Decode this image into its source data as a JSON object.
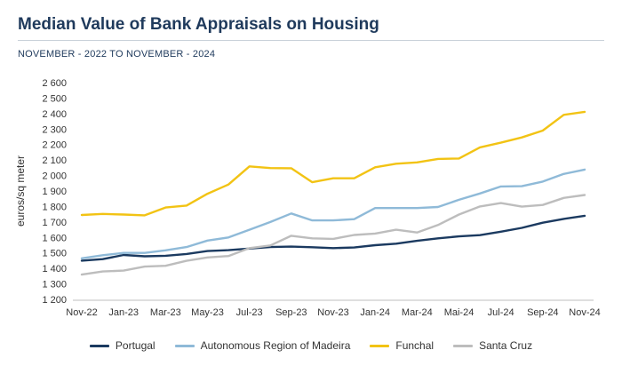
{
  "header": {
    "title": "Median Value of Bank Appraisals on Housing",
    "subtitle": "NOVEMBER - 2022 TO NOVEMBER - 2024"
  },
  "chart_data": {
    "type": "line",
    "title": "Median Value of Bank Appraisals on Housing",
    "subtitle": "NOVEMBER - 2022 TO NOVEMBER - 2024",
    "xlabel": "",
    "ylabel": "euros/sq meter",
    "ylim": [
      1200,
      2600
    ],
    "yticks": [
      1200,
      1300,
      1400,
      1500,
      1600,
      1700,
      1800,
      1900,
      2000,
      2100,
      2200,
      2300,
      2400,
      2500,
      2600
    ],
    "ytick_labels": [
      "1 200",
      "1 300",
      "1 400",
      "1 500",
      "1 600",
      "1 700",
      "1 800",
      "1 900",
      "2 000",
      "2 100",
      "2 200",
      "2 300",
      "2 400",
      "2 500",
      "2 600"
    ],
    "x": [
      "Nov-22",
      "Dec-22",
      "Jan-23",
      "Feb-23",
      "Mar-23",
      "Apr-23",
      "May-23",
      "Jun-23",
      "Jul-23",
      "Aug-23",
      "Sep-23",
      "Oct-23",
      "Nov-23",
      "Dec-23",
      "Jan-24",
      "Feb-24",
      "Mar-24",
      "Apr-24",
      "Mai-24",
      "Jun-24",
      "Jul-24",
      "Aug-24",
      "Sep-24",
      "Oct-24",
      "Nov-24"
    ],
    "xtick_labels": [
      "Nov-22",
      "Jan-23",
      "Mar-23",
      "May-23",
      "Jul-23",
      "Sep-23",
      "Nov-23",
      "Jan-24",
      "Mar-24",
      "Mai-24",
      "Jul-24",
      "Sep-24",
      "Nov-24"
    ],
    "grid": false,
    "legend_position": "bottom",
    "series": [
      {
        "name": "Portugal",
        "color": "#1b3a60",
        "values": [
          1450,
          1460,
          1487,
          1478,
          1482,
          1493,
          1512,
          1518,
          1528,
          1538,
          1541,
          1537,
          1531,
          1535,
          1550,
          1560,
          1578,
          1594,
          1607,
          1615,
          1637,
          1662,
          1695,
          1720,
          1740
        ]
      },
      {
        "name": "Autonomous Region of Madeira",
        "color": "#8fbad8",
        "values": [
          1465,
          1485,
          1500,
          1500,
          1517,
          1538,
          1580,
          1600,
          1650,
          1700,
          1755,
          1710,
          1710,
          1718,
          1790,
          1790,
          1790,
          1797,
          1843,
          1884,
          1929,
          1931,
          1961,
          2010,
          2038
        ]
      },
      {
        "name": "Funchal",
        "color": "#f2c314",
        "values": [
          1745,
          1752,
          1748,
          1743,
          1793,
          1806,
          1882,
          1942,
          2059,
          2048,
          2047,
          1957,
          1982,
          1982,
          2053,
          2076,
          2085,
          2107,
          2110,
          2182,
          2212,
          2246,
          2290,
          2392,
          2411
        ]
      },
      {
        "name": "Santa Cruz",
        "color": "#bdbdbd",
        "values": [
          1360,
          1380,
          1386,
          1412,
          1417,
          1449,
          1471,
          1480,
          1531,
          1548,
          1611,
          1594,
          1591,
          1616,
          1625,
          1650,
          1632,
          1680,
          1748,
          1800,
          1822,
          1799,
          1810,
          1855,
          1874
        ]
      }
    ]
  }
}
